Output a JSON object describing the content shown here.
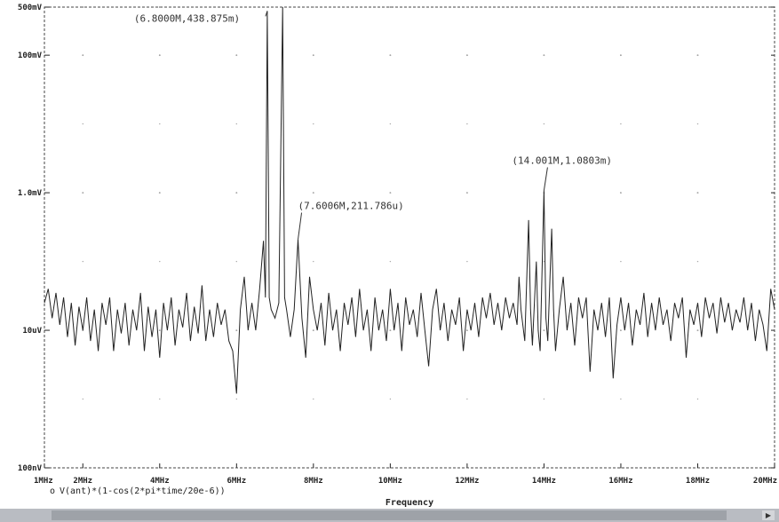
{
  "chart_data": {
    "type": "line",
    "title": "",
    "xlabel": "Frequency",
    "ylabel": "",
    "x_scale": "linear",
    "y_scale": "log",
    "xlim": [
      1000000,
      20000000
    ],
    "ylim": [
      1e-07,
      0.5
    ],
    "x_tick_labels": [
      "1MHz",
      "2MHz",
      "4MHz",
      "6MHz",
      "8MHz",
      "10MHz",
      "12MHz",
      "14MHz",
      "16MHz",
      "18MHz",
      "20MHz"
    ],
    "x_tick_values": [
      1000000,
      2000000,
      4000000,
      6000000,
      8000000,
      10000000,
      12000000,
      14000000,
      16000000,
      18000000,
      20000000
    ],
    "y_tick_labels": [
      "500mV",
      "100mV",
      "1.0mV",
      "10uV",
      "100nV"
    ],
    "y_tick_values": [
      0.5,
      0.1,
      0.001,
      1e-05,
      1e-07
    ],
    "grid": true,
    "series": [
      {
        "name": "V(ant)*(1-cos(2*pi*time/20e-6))",
        "points": [
          [
            1000000,
            2.5e-05
          ],
          [
            1100000,
            4e-05
          ],
          [
            1200000,
            1.5e-05
          ],
          [
            1300000,
            3.5e-05
          ],
          [
            1400000,
            1.2e-05
          ],
          [
            1500000,
            3e-05
          ],
          [
            1600000,
            8e-06
          ],
          [
            1700000,
            2.5e-05
          ],
          [
            1800000,
            6e-06
          ],
          [
            1900000,
            2.2e-05
          ],
          [
            2000000,
            1e-05
          ],
          [
            2100000,
            3e-05
          ],
          [
            2200000,
            7e-06
          ],
          [
            2300000,
            2e-05
          ],
          [
            2400000,
            5e-06
          ],
          [
            2500000,
            2.5e-05
          ],
          [
            2600000,
            1.2e-05
          ],
          [
            2700000,
            3e-05
          ],
          [
            2800000,
            5e-06
          ],
          [
            2900000,
            2e-05
          ],
          [
            3000000,
            9e-06
          ],
          [
            3100000,
            2.5e-05
          ],
          [
            3200000,
            6e-06
          ],
          [
            3300000,
            2e-05
          ],
          [
            3400000,
            1e-05
          ],
          [
            3500000,
            3.5e-05
          ],
          [
            3600000,
            5e-06
          ],
          [
            3700000,
            2.2e-05
          ],
          [
            3800000,
            8e-06
          ],
          [
            3900000,
            2e-05
          ],
          [
            4000000,
            4e-06
          ],
          [
            4100000,
            2.5e-05
          ],
          [
            4200000,
            1e-05
          ],
          [
            4300000,
            3e-05
          ],
          [
            4400000,
            6e-06
          ],
          [
            4500000,
            2e-05
          ],
          [
            4600000,
            1.1e-05
          ],
          [
            4700000,
            3.5e-05
          ],
          [
            4800000,
            7e-06
          ],
          [
            4900000,
            2.2e-05
          ],
          [
            5000000,
            9e-06
          ],
          [
            5100000,
            4.5e-05
          ],
          [
            5200000,
            7e-06
          ],
          [
            5300000,
            2e-05
          ],
          [
            5400000,
            8e-06
          ],
          [
            5500000,
            2.5e-05
          ],
          [
            5600000,
            1.2e-05
          ],
          [
            5700000,
            2e-05
          ],
          [
            5800000,
            7e-06
          ],
          [
            5900000,
            5e-06
          ],
          [
            6000000,
            1.2e-06
          ],
          [
            6100000,
            2e-05
          ],
          [
            6200000,
            6e-05
          ],
          [
            6300000,
            1e-05
          ],
          [
            6400000,
            2.5e-05
          ],
          [
            6500000,
            1e-05
          ],
          [
            6600000,
            4e-05
          ],
          [
            6700000,
            0.0002
          ],
          [
            6750000,
            3e-05
          ],
          [
            6800000,
            0.4388
          ],
          [
            6850000,
            3e-05
          ],
          [
            6900000,
            2e-05
          ],
          [
            7000000,
            1.5e-05
          ],
          [
            7100000,
            2.5e-05
          ],
          [
            7200000,
            0.5
          ],
          [
            7250000,
            3e-05
          ],
          [
            7300000,
            2e-05
          ],
          [
            7400000,
            8e-06
          ],
          [
            7500000,
            2e-05
          ],
          [
            7600000,
            0.00021
          ],
          [
            7700000,
            1.5e-05
          ],
          [
            7800000,
            4e-06
          ],
          [
            7900000,
            6e-05
          ],
          [
            8000000,
            2e-05
          ],
          [
            8100000,
            1e-05
          ],
          [
            8200000,
            2.5e-05
          ],
          [
            8300000,
            6e-06
          ],
          [
            8400000,
            3.5e-05
          ],
          [
            8500000,
            1e-05
          ],
          [
            8600000,
            2e-05
          ],
          [
            8700000,
            5e-06
          ],
          [
            8800000,
            2.5e-05
          ],
          [
            8900000,
            1.2e-05
          ],
          [
            9000000,
            3e-05
          ],
          [
            9100000,
            8e-06
          ],
          [
            9200000,
            4e-05
          ],
          [
            9300000,
            1e-05
          ],
          [
            9400000,
            2e-05
          ],
          [
            9500000,
            5e-06
          ],
          [
            9600000,
            3e-05
          ],
          [
            9700000,
            1e-05
          ],
          [
            9800000,
            2e-05
          ],
          [
            9900000,
            7e-06
          ],
          [
            10000000,
            4e-05
          ],
          [
            10100000,
            1e-05
          ],
          [
            10200000,
            2.5e-05
          ],
          [
            10300000,
            5e-06
          ],
          [
            10400000,
            3e-05
          ],
          [
            10500000,
            1.2e-05
          ],
          [
            10600000,
            2e-05
          ],
          [
            10700000,
            8e-06
          ],
          [
            10800000,
            3.5e-05
          ],
          [
            10900000,
            1e-05
          ],
          [
            11000000,
            3e-06
          ],
          [
            11100000,
            2e-05
          ],
          [
            11200000,
            4e-05
          ],
          [
            11300000,
            1e-05
          ],
          [
            11400000,
            2.5e-05
          ],
          [
            11500000,
            7e-06
          ],
          [
            11600000,
            2e-05
          ],
          [
            11700000,
            1.2e-05
          ],
          [
            11800000,
            3e-05
          ],
          [
            11900000,
            5e-06
          ],
          [
            12000000,
            2e-05
          ],
          [
            12100000,
            1e-05
          ],
          [
            12200000,
            2.5e-05
          ],
          [
            12300000,
            8e-06
          ],
          [
            12400000,
            3e-05
          ],
          [
            12500000,
            1.5e-05
          ],
          [
            12600000,
            3.5e-05
          ],
          [
            12700000,
            1.2e-05
          ],
          [
            12800000,
            2.5e-05
          ],
          [
            12900000,
            1e-05
          ],
          [
            13000000,
            3e-05
          ],
          [
            13100000,
            1.5e-05
          ],
          [
            13200000,
            2.5e-05
          ],
          [
            13300000,
            1.2e-05
          ],
          [
            13350000,
            6e-05
          ],
          [
            13400000,
            2e-05
          ],
          [
            13500000,
            7e-06
          ],
          [
            13600000,
            0.0004
          ],
          [
            13650000,
            2e-05
          ],
          [
            13700000,
            6e-06
          ],
          [
            13800000,
            0.0001
          ],
          [
            13850000,
            1e-05
          ],
          [
            13900000,
            5e-06
          ],
          [
            14000000,
            0.00108
          ],
          [
            14050000,
            1.5e-05
          ],
          [
            14100000,
            7e-06
          ],
          [
            14200000,
            0.0003
          ],
          [
            14250000,
            2e-05
          ],
          [
            14300000,
            5e-06
          ],
          [
            14400000,
            2e-05
          ],
          [
            14500000,
            6e-05
          ],
          [
            14600000,
            1e-05
          ],
          [
            14700000,
            2.5e-05
          ],
          [
            14800000,
            6e-06
          ],
          [
            14900000,
            3e-05
          ],
          [
            15000000,
            1.5e-05
          ],
          [
            15100000,
            3e-05
          ],
          [
            15200000,
            2.5e-06
          ],
          [
            15300000,
            2e-05
          ],
          [
            15400000,
            1e-05
          ],
          [
            15500000,
            2.5e-05
          ],
          [
            15600000,
            8e-06
          ],
          [
            15700000,
            3e-05
          ],
          [
            15800000,
            2e-06
          ],
          [
            15900000,
            1.2e-05
          ],
          [
            16000000,
            3e-05
          ],
          [
            16100000,
            1e-05
          ],
          [
            16200000,
            2.5e-05
          ],
          [
            16300000,
            6e-06
          ],
          [
            16400000,
            2e-05
          ],
          [
            16500000,
            1.2e-05
          ],
          [
            16600000,
            3.5e-05
          ],
          [
            16700000,
            8e-06
          ],
          [
            16800000,
            2.5e-05
          ],
          [
            16900000,
            1e-05
          ],
          [
            17000000,
            3e-05
          ],
          [
            17100000,
            1.2e-05
          ],
          [
            17200000,
            2e-05
          ],
          [
            17300000,
            7e-06
          ],
          [
            17400000,
            2.5e-05
          ],
          [
            17500000,
            1.5e-05
          ],
          [
            17600000,
            3e-05
          ],
          [
            17700000,
            4e-06
          ],
          [
            17800000,
            2e-05
          ],
          [
            17900000,
            1.2e-05
          ],
          [
            18000000,
            2.5e-05
          ],
          [
            18100000,
            8e-06
          ],
          [
            18200000,
            3e-05
          ],
          [
            18300000,
            1.5e-05
          ],
          [
            18400000,
            2.5e-05
          ],
          [
            18500000,
            9e-06
          ],
          [
            18600000,
            3e-05
          ],
          [
            18700000,
            1.3e-05
          ],
          [
            18800000,
            2.5e-05
          ],
          [
            18900000,
            1e-05
          ],
          [
            19000000,
            2e-05
          ],
          [
            19100000,
            1.3e-05
          ],
          [
            19200000,
            3e-05
          ],
          [
            19300000,
            1e-05
          ],
          [
            19400000,
            2.5e-05
          ],
          [
            19500000,
            7e-06
          ],
          [
            19600000,
            2e-05
          ],
          [
            19700000,
            1.2e-05
          ],
          [
            19800000,
            5e-06
          ],
          [
            19900000,
            4e-05
          ],
          [
            20000000,
            2e-05
          ]
        ]
      }
    ],
    "annotations": [
      {
        "text": "(6.8000M,438.875m)",
        "x": 6800000,
        "y": 0.4388
      },
      {
        "text": "(7.6006M,211.786u)",
        "x": 7600000,
        "y": 0.00021
      },
      {
        "text": "(14.001M,1.0803m)",
        "x": 14000000,
        "y": 0.00108
      }
    ],
    "legend": [
      {
        "marker": "o",
        "text": "V(ant)*(1-cos(2*pi*time/20e-6))"
      }
    ]
  },
  "scrollbar": {
    "left_arrow": "◀",
    "right_arrow": "▶"
  }
}
